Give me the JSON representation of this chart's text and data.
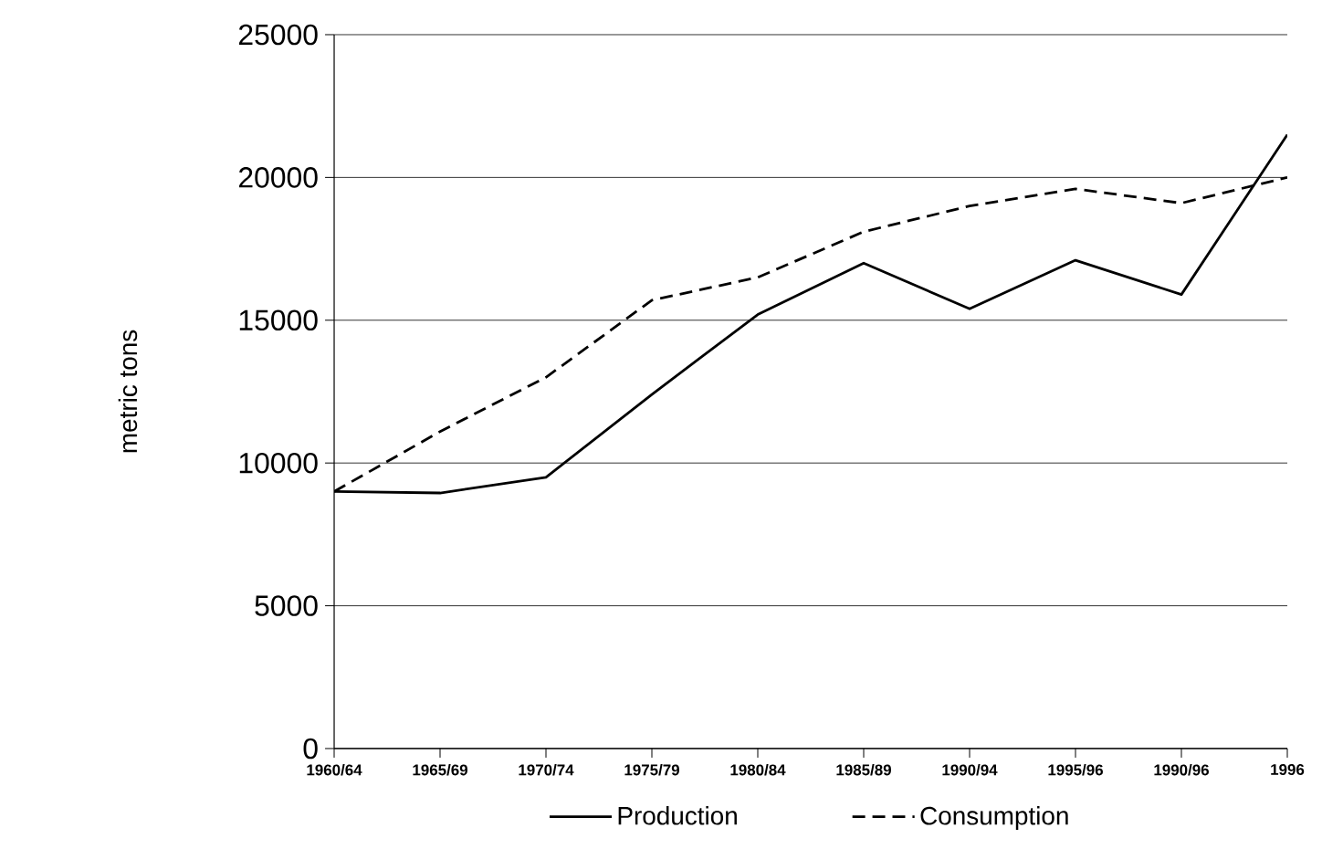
{
  "chart_data": {
    "type": "line",
    "ylabel": "metric tons",
    "categories": [
      "1960/64",
      "1965/69",
      "1970/74",
      "1975/79",
      "1980/84",
      "1985/89",
      "1990/94",
      "1995/96",
      "1990/96",
      "1996"
    ],
    "series": [
      {
        "name": "Production",
        "color": "#000000",
        "line_style": "solid",
        "values": [
          9000,
          8950,
          9500,
          12400,
          15200,
          17000,
          15400,
          17100,
          15900,
          21500
        ]
      },
      {
        "name": "Consumption",
        "color": "#000000",
        "line_style": "dashed",
        "values": [
          9000,
          11100,
          13000,
          15700,
          16500,
          18100,
          19000,
          19600,
          19100,
          20000
        ]
      }
    ],
    "ylim": [
      0,
      25000
    ],
    "yticks": [
      0,
      5000,
      10000,
      15000,
      20000,
      25000
    ],
    "grid": "y",
    "legend": "bottom",
    "marker": "none"
  }
}
